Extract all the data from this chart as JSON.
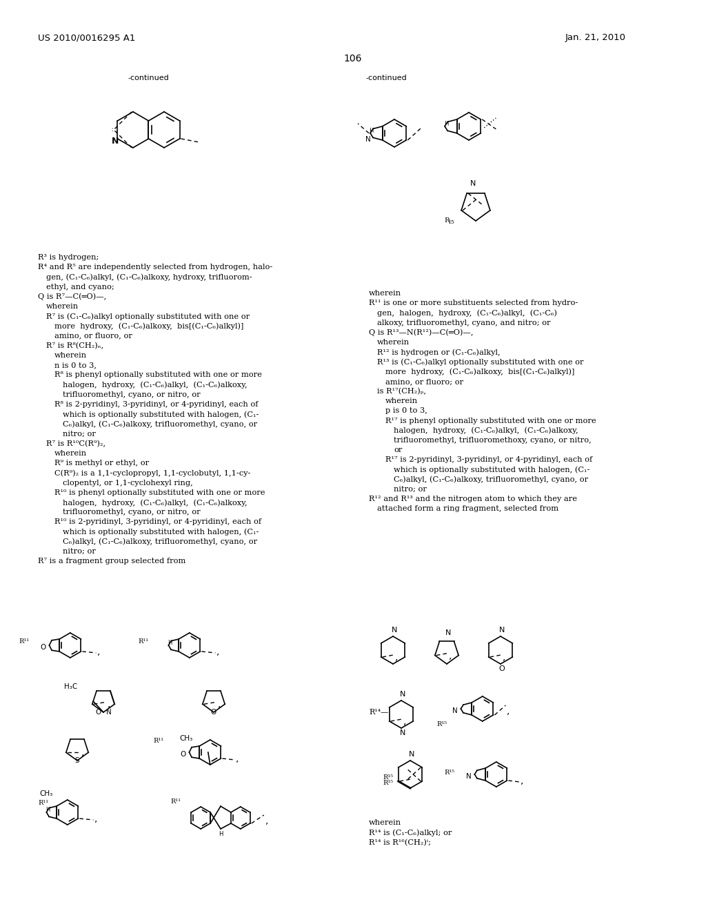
{
  "page_number": "106",
  "patent_number": "US 2010/0016295 A1",
  "patent_date": "Jan. 21, 2010",
  "background_color": "#ffffff",
  "text_color": "#000000",
  "left_text_lines": [
    [
      "R³ is hydrogen;",
      0
    ],
    [
      "R⁴ and R⁵ are independently selected from hydrogen, halo-",
      0
    ],
    [
      "gen, (C₁-C₆)alkyl, (C₁-C₆)alkoxy, hydroxy, trifluorom-",
      1
    ],
    [
      "ethyl, and cyano;",
      1
    ],
    [
      "Q is R⁷—C(═O)—,",
      0
    ],
    [
      "wherein",
      1
    ],
    [
      "R⁷ is (C₁-C₆)alkyl optionally substituted with one or",
      1
    ],
    [
      "more  hydroxy,  (C₁-C₆)alkoxy,  bis[(C₁-C₆)alkyl)]",
      2
    ],
    [
      "amino, or fluoro, or",
      2
    ],
    [
      "R⁷ is R⁸(CH₂)ₙ,",
      1
    ],
    [
      "wherein",
      2
    ],
    [
      "n is 0 to 3,",
      2
    ],
    [
      "R⁸ is phenyl optionally substituted with one or more",
      2
    ],
    [
      "halogen,  hydroxy,  (C₁-C₆)alkyl,  (C₁-C₆)alkoxy,",
      3
    ],
    [
      "trifluoromethyl, cyano, or nitro, or",
      3
    ],
    [
      "R⁸ is 2-pyridinyl, 3-pyridinyl, or 4-pyridinyl, each of",
      2
    ],
    [
      "which is optionally substituted with halogen, (C₁-",
      3
    ],
    [
      "C₆)alkyl, (C₁-C₆)alkoxy, trifluoromethyl, cyano, or",
      3
    ],
    [
      "nitro; or",
      3
    ],
    [
      "R⁷ is R¹⁰C(R⁹)₂,",
      1
    ],
    [
      "wherein",
      2
    ],
    [
      "R⁹ is methyl or ethyl, or",
      2
    ],
    [
      "C(R⁹)₂ is a 1,1-cyclopropyl, 1,1-cyclobutyl, 1,1-cy-",
      2
    ],
    [
      "clopentyl, or 1,1-cyclohexyl ring,",
      3
    ],
    [
      "R¹⁰ is phenyl optionally substituted with one or more",
      2
    ],
    [
      "halogen,  hydroxy,  (C₁-C₆)alkyl,  (C₁-C₆)alkoxy,",
      3
    ],
    [
      "trifluoromethyl, cyano, or nitro, or",
      3
    ],
    [
      "R¹⁰ is 2-pyridinyl, 3-pyridinyl, or 4-pyridinyl, each of",
      2
    ],
    [
      "which is optionally substituted with halogen, (C₁-",
      3
    ],
    [
      "C₆)alkyl, (C₁-C₆)alkoxy, trifluoromethyl, cyano, or",
      3
    ],
    [
      "nitro; or",
      3
    ],
    [
      "R⁷ is a fragment group selected from",
      0
    ]
  ],
  "right_text_lines": [
    [
      "wherein",
      0
    ],
    [
      "R¹¹ is one or more substituents selected from hydro-",
      0
    ],
    [
      "gen,  halogen,  hydroxy,  (C₁-C₆)alkyl,  (C₁-C₆)",
      1
    ],
    [
      "alkoxy, trifluoromethyl, cyano, and nitro; or",
      1
    ],
    [
      "Q is R¹³—N(R¹²)—C(═O)—,",
      0
    ],
    [
      "wherein",
      1
    ],
    [
      "R¹² is hydrogen or (C₁-C₆)alkyl,",
      1
    ],
    [
      "R¹³ is (C₁-C₆)alkyl optionally substituted with one or",
      1
    ],
    [
      "more  hydroxy,  (C₁-C₆)alkoxy,  bis[(C₁-C₆)alkyl)]",
      2
    ],
    [
      "amino, or fluoro; or",
      2
    ],
    [
      "is R¹⁷(CH₂)ₚ,",
      1
    ],
    [
      "wherein",
      2
    ],
    [
      "p is 0 to 3,",
      2
    ],
    [
      "R¹⁷ is phenyl optionally substituted with one or more",
      2
    ],
    [
      "halogen,  hydroxy,  (C₁-C₆)alkyl,  (C₁-C₆)alkoxy,",
      3
    ],
    [
      "trifluoromethyl, trifluoromethoxy, cyano, or nitro,",
      3
    ],
    [
      "or",
      3
    ],
    [
      "R¹⁷ is 2-pyridinyl, 3-pyridinyl, or 4-pyridinyl, each of",
      2
    ],
    [
      "which is optionally substituted with halogen, (C₁-",
      3
    ],
    [
      "C₆)alkyl, (C₁-C₆)alkoxy, trifluoromethyl, cyano, or",
      3
    ],
    [
      "nitro; or",
      3
    ],
    [
      "R¹² and R¹³ and the nitrogen atom to which they are",
      0
    ],
    [
      "attached form a ring fragment, selected from",
      1
    ]
  ],
  "bottom_right_text": [
    "wherein",
    "R¹⁴ is (C₁-C₆)alkyl; or",
    "R¹⁴ is R¹⁶(CH₂)ⁱ;"
  ]
}
